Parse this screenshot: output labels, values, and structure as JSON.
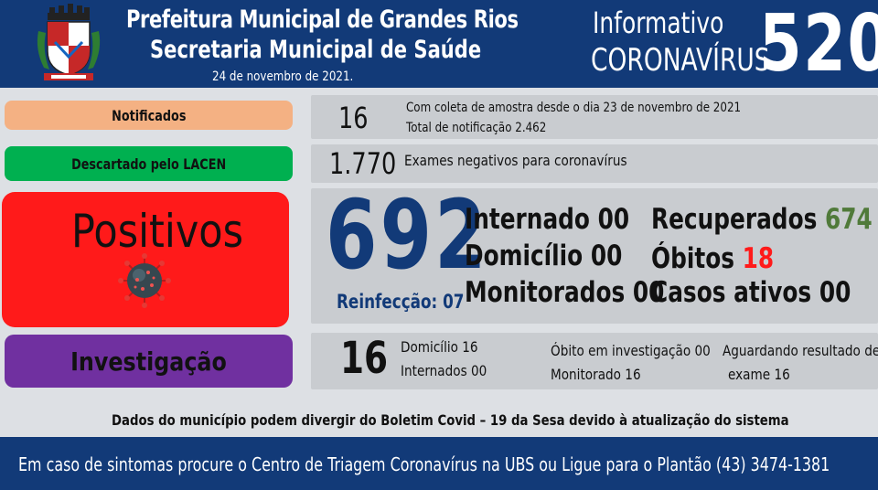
{
  "header": {
    "line1": "Prefeitura Municipal de Grandes Rios",
    "line2": "Secretaria Municipal de Saúde",
    "date": "24 de novembro  de 2021.",
    "informativo": "Informativo",
    "coronavirus": "CORONAVÍRUS",
    "bulletin_number": "520"
  },
  "notificados": {
    "label": "Notificados",
    "value": "16",
    "detail1": "Com coleta de amostra desde o dia 23 de novembro de 2021",
    "detail2": "Total de notificação  2.462"
  },
  "descartados": {
    "label": "Descartado  pelo  LACEN",
    "value": "1.770",
    "detail": "Exames negativos  para coronavírus"
  },
  "positivos": {
    "label": "Positivos",
    "value": "692",
    "reinfeccao": "Reinfecção:  07",
    "internado": "Internado 00",
    "domicilio": "Domicílio 00",
    "monitorados": "Monitorados 00",
    "recuperados_label": "Recuperados",
    "recuperados_value": "674",
    "obitos_label": "Óbitos",
    "obitos_value": "18",
    "casos_ativos": "Casos ativos 00"
  },
  "investigacao": {
    "label": "Investigação",
    "value": "16",
    "domicilio": "Domicílio 16",
    "internados": "Internados 00",
    "obito": "Óbito  em investigação  00",
    "monitorado": "Monitorado 16",
    "aguardando1": "Aguardando resultado de",
    "aguardando2": "exame 16"
  },
  "disclaimer": "Dados do município  podem  divergir do Boletim  Covid  – 19 da Sesa devido à atualização  do sistema",
  "footer": "Em caso de sintomas procure  o Centro de Triagem  Coronavírus  na UBS ou Ligue  para o Plantão  (43) 3474-1381",
  "colors": {
    "header_bg": "#123a78",
    "notificados": "#f4b183",
    "descartados": "#00b050",
    "positivos": "#ff1a1a",
    "investigacao": "#7030a0",
    "recuperados": "#507a3a",
    "obitos": "#ff1a1a"
  }
}
